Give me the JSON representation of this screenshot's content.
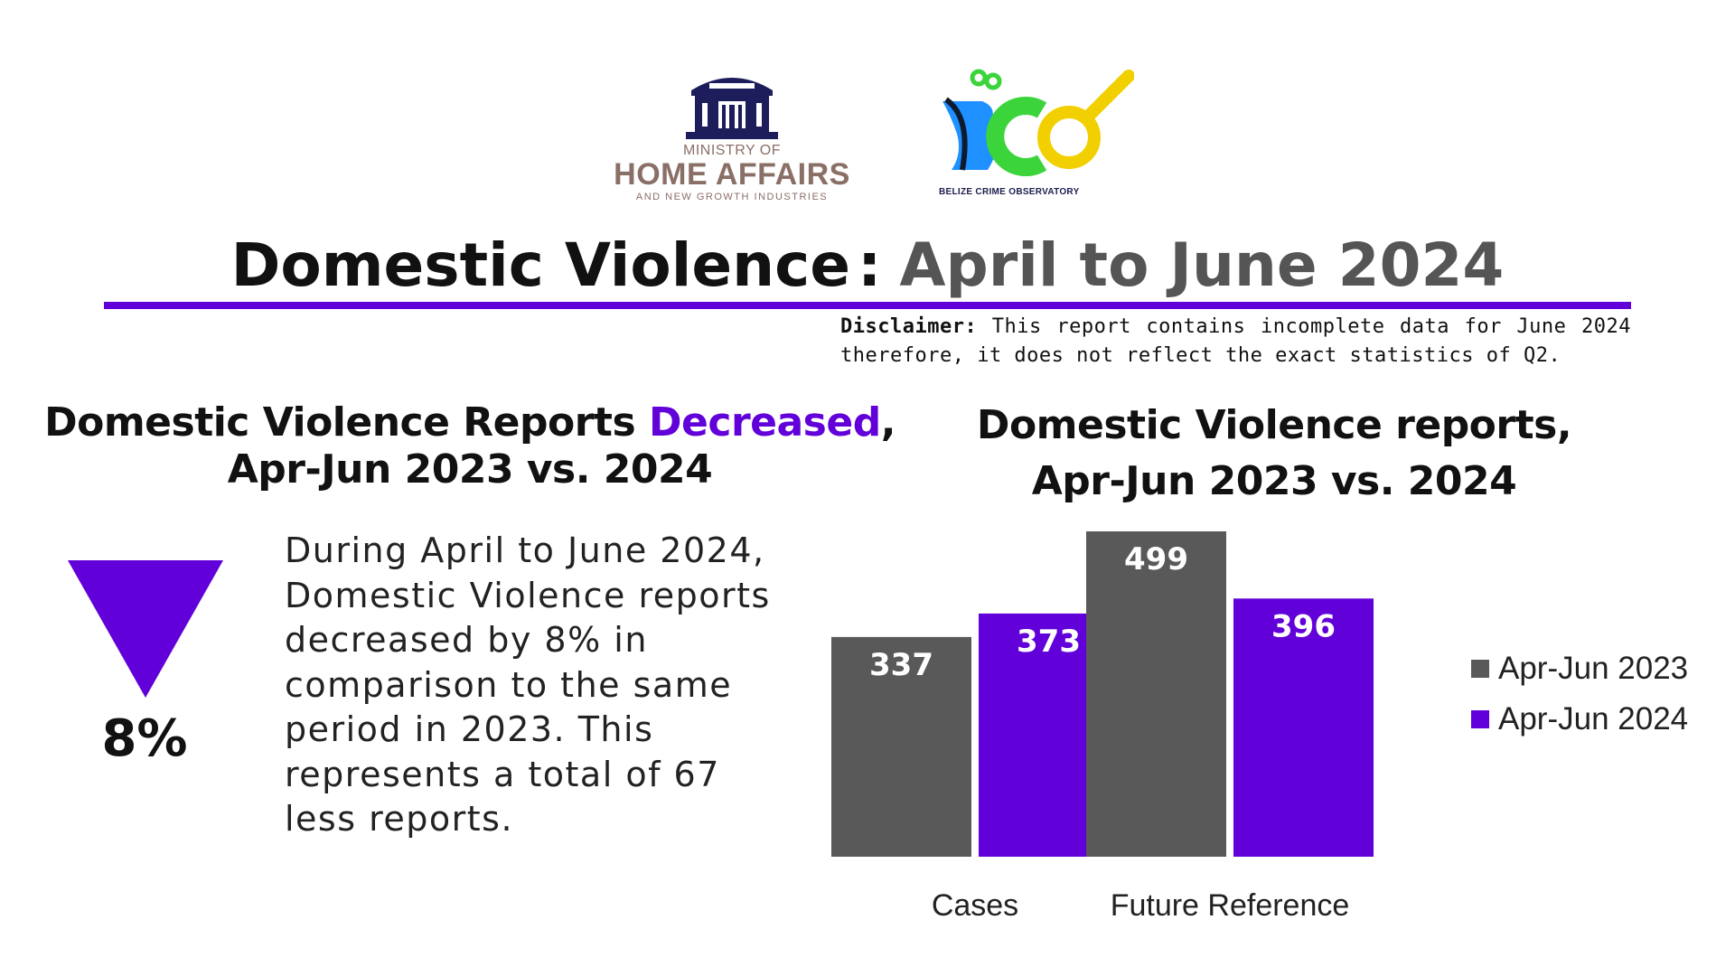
{
  "logos": {
    "ministry": {
      "line1": "MINISTRY OF",
      "line2": "HOME AFFAIRS",
      "line3": "AND NEW GROWTH INDUSTRIES"
    },
    "observatory": {
      "caption": "BELIZE CRIME OBSERVATORY"
    }
  },
  "header": {
    "title_main": "Domestic Violence",
    "title_separator": ":",
    "title_period": "April to June 2024",
    "rule_color": "#6200d9"
  },
  "disclaimer": {
    "label": "Disclaimer:",
    "text": "This report contains incomplete data for June 2024 therefore, it does not reflect the exact statistics of Q2."
  },
  "summary_panel": {
    "heading_prefix": "Domestic Violence Reports",
    "heading_highlight": "Decreased",
    "heading_suffix": ",",
    "heading_line2": "Apr-Jun 2023 vs. 2024",
    "indicator_icon": "down-triangle-icon",
    "indicator_color": "#6200d9",
    "percent_change": "8%",
    "body": "During April to June 2024, Domestic Violence reports decreased by 8% in comparison to the same period in 2023. This represents a total of 67 less reports."
  },
  "chart_data": {
    "type": "bar",
    "title": "Domestic Violence reports, Apr-Jun 2023 vs. 2024",
    "title_line1": "Domestic Violence reports,",
    "title_line2": "Apr-Jun 2023 vs. 2024",
    "categories": [
      "Cases",
      "Future Reference"
    ],
    "series": [
      {
        "name": "Apr-Jun 2023",
        "values": [
          337,
          499
        ],
        "color": "#595959"
      },
      {
        "name": "Apr-Jun 2024",
        "values": [
          373,
          396
        ],
        "color": "#6200d9"
      }
    ],
    "ylim": [
      0,
      499
    ],
    "data_labels": true,
    "grid": false,
    "legend_position": "right"
  }
}
